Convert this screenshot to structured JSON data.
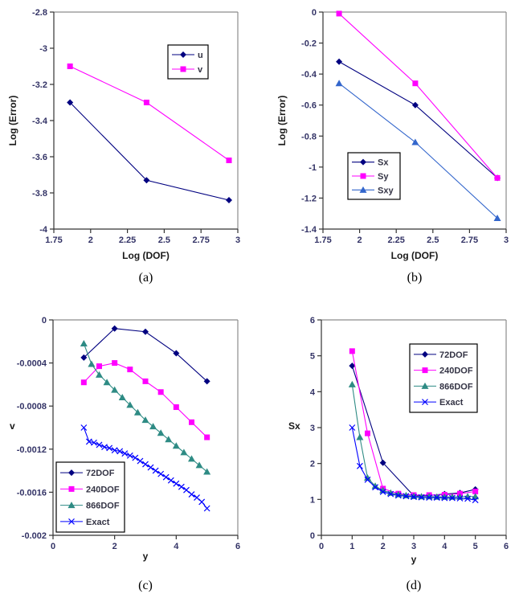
{
  "chart_data": [
    {
      "id": "a",
      "type": "line",
      "caption": "(a)",
      "xlabel": "Log (DOF)",
      "ylabel": "Log (Error)",
      "xlim": [
        1.75,
        3
      ],
      "ylim": [
        -4,
        -2.8
      ],
      "xticks": [
        {
          "v": 1.75,
          "label": "1.75"
        },
        {
          "v": 2,
          "label": "2"
        },
        {
          "v": 2.25,
          "label": "2.25"
        },
        {
          "v": 2.5,
          "label": "2.5"
        },
        {
          "v": 2.75,
          "label": "2.75"
        },
        {
          "v": 3,
          "label": "3"
        }
      ],
      "yticks": [
        {
          "v": -2.8,
          "label": "-2.8"
        },
        {
          "v": -3,
          "label": "-3"
        },
        {
          "v": -3.2,
          "label": "-3.2"
        },
        {
          "v": -3.4,
          "label": "-3.4"
        },
        {
          "v": -3.6,
          "label": "-3.6"
        },
        {
          "v": -3.8,
          "label": "-3.8"
        },
        {
          "v": -4,
          "label": "-4"
        }
      ],
      "grid": "off",
      "legend_position": "top-right",
      "series": [
        {
          "name": "u",
          "color": "#000080",
          "marker": "diamond",
          "x": [
            1.86,
            2.38,
            2.94
          ],
          "y": [
            -3.3,
            -3.73,
            -3.84
          ]
        },
        {
          "name": "v",
          "color": "#FF00FF",
          "marker": "square",
          "x": [
            1.86,
            2.38,
            2.94
          ],
          "y": [
            -3.1,
            -3.3,
            -3.62
          ]
        }
      ]
    },
    {
      "id": "b",
      "type": "line",
      "caption": "(b)",
      "xlabel": "Log (DOF)",
      "ylabel": "Log (Error)",
      "xlim": [
        1.75,
        3
      ],
      "ylim": [
        -1.4,
        0
      ],
      "xticks": [
        {
          "v": 1.75,
          "label": "1.75"
        },
        {
          "v": 2,
          "label": "2"
        },
        {
          "v": 2.25,
          "label": "2.25"
        },
        {
          "v": 2.5,
          "label": "2.5"
        },
        {
          "v": 2.75,
          "label": "2.75"
        },
        {
          "v": 3,
          "label": "3"
        }
      ],
      "yticks": [
        {
          "v": 0,
          "label": "0"
        },
        {
          "v": -0.2,
          "label": "-0.2"
        },
        {
          "v": -0.4,
          "label": "-0.4"
        },
        {
          "v": -0.6,
          "label": "-0.6"
        },
        {
          "v": -0.8,
          "label": "-0.8"
        },
        {
          "v": -1,
          "label": "-1"
        },
        {
          "v": -1.2,
          "label": "-1.2"
        },
        {
          "v": -1.4,
          "label": "-1.4"
        }
      ],
      "grid": "off",
      "legend_position": "mid-left",
      "series": [
        {
          "name": "Sx",
          "color": "#000080",
          "marker": "diamond",
          "x": [
            1.86,
            2.38,
            2.94
          ],
          "y": [
            -0.32,
            -0.6,
            -1.07
          ]
        },
        {
          "name": "Sy",
          "color": "#FF00FF",
          "marker": "square",
          "x": [
            1.86,
            2.38,
            2.94
          ],
          "y": [
            -0.01,
            -0.46,
            -1.07
          ]
        },
        {
          "name": "Sxy",
          "color": "#3366CC",
          "marker": "triangle",
          "x": [
            1.86,
            2.38,
            2.94
          ],
          "y": [
            -0.46,
            -0.84,
            -1.33
          ]
        }
      ]
    },
    {
      "id": "c",
      "type": "line",
      "caption": "(c)",
      "xlabel": "y",
      "ylabel": "v",
      "xlim": [
        0,
        6
      ],
      "ylim": [
        -0.002,
        0
      ],
      "xticks": [
        {
          "v": 0,
          "label": "0"
        },
        {
          "v": 2,
          "label": "2"
        },
        {
          "v": 4,
          "label": "4"
        },
        {
          "v": 6,
          "label": "6"
        }
      ],
      "yticks": [
        {
          "v": 0,
          "label": "0"
        },
        {
          "v": -0.0004,
          "label": "-0.0004"
        },
        {
          "v": -0.0008,
          "label": "-0.0008"
        },
        {
          "v": -0.0012,
          "label": "-0.0012"
        },
        {
          "v": -0.0016,
          "label": "-0.0016"
        },
        {
          "v": -0.002,
          "label": "-0.002"
        }
      ],
      "grid": "off",
      "legend_position": "bottom-left",
      "series": [
        {
          "name": "72DOF",
          "color": "#000080",
          "marker": "diamond",
          "x": [
            1,
            2,
            3,
            4,
            5
          ],
          "y": [
            -0.00035,
            -8e-05,
            -0.00011,
            -0.00031,
            -0.00057
          ]
        },
        {
          "name": "240DOF",
          "color": "#FF00FF",
          "marker": "square",
          "x": [
            1,
            1.5,
            2,
            2.5,
            3,
            3.5,
            4,
            4.5,
            5
          ],
          "y": [
            -0.00058,
            -0.00043,
            -0.0004,
            -0.00046,
            -0.00057,
            -0.00067,
            -0.00081,
            -0.00095,
            -0.00109
          ]
        },
        {
          "name": "866DOF",
          "color": "#2E8B84",
          "marker": "triangle",
          "x": [
            1,
            1.25,
            1.5,
            1.75,
            2,
            2.25,
            2.5,
            2.75,
            3,
            3.25,
            3.5,
            3.75,
            4,
            4.25,
            4.5,
            4.75,
            5
          ],
          "y": [
            -0.00022,
            -0.00041,
            -0.00051,
            -0.00058,
            -0.00065,
            -0.00072,
            -0.00079,
            -0.00086,
            -0.00093,
            -0.00099,
            -0.00105,
            -0.00111,
            -0.00117,
            -0.00123,
            -0.00129,
            -0.00135,
            -0.00141
          ]
        },
        {
          "name": "Exact",
          "color": "#0000FF",
          "marker": "x",
          "x": [
            1,
            1.17,
            1.33,
            1.5,
            1.67,
            1.83,
            2,
            2.17,
            2.33,
            2.5,
            2.67,
            2.83,
            3,
            3.17,
            3.33,
            3.5,
            3.67,
            3.83,
            4,
            4.17,
            4.33,
            4.5,
            4.67,
            4.83,
            5
          ],
          "y": [
            -0.001,
            -0.00113,
            -0.00114,
            -0.00116,
            -0.00118,
            -0.00119,
            -0.00121,
            -0.00122,
            -0.00124,
            -0.00126,
            -0.00128,
            -0.00131,
            -0.00134,
            -0.00137,
            -0.0014,
            -0.00143,
            -0.00146,
            -0.00149,
            -0.00152,
            -0.00155,
            -0.00158,
            -0.00162,
            -0.00165,
            -0.00169,
            -0.00175
          ]
        }
      ]
    },
    {
      "id": "d",
      "type": "line",
      "caption": "(d)",
      "xlabel": "y",
      "ylabel": "Sx",
      "xlim": [
        0,
        6
      ],
      "ylim": [
        0,
        6
      ],
      "xticks": [
        {
          "v": 0,
          "label": "0"
        },
        {
          "v": 1,
          "label": "1"
        },
        {
          "v": 2,
          "label": "2"
        },
        {
          "v": 3,
          "label": "3"
        },
        {
          "v": 4,
          "label": "4"
        },
        {
          "v": 5,
          "label": "5"
        },
        {
          "v": 6,
          "label": "6"
        }
      ],
      "yticks": [
        {
          "v": 0,
          "label": "0"
        },
        {
          "v": 1,
          "label": "1"
        },
        {
          "v": 2,
          "label": "2"
        },
        {
          "v": 3,
          "label": "3"
        },
        {
          "v": 4,
          "label": "4"
        },
        {
          "v": 5,
          "label": "5"
        },
        {
          "v": 6,
          "label": "6"
        }
      ],
      "grid": "off",
      "legend_position": "top-right",
      "series": [
        {
          "name": "72DOF",
          "color": "#000080",
          "marker": "diamond",
          "x": [
            1,
            2,
            3,
            3.5,
            4,
            4.5,
            5
          ],
          "y": [
            4.72,
            2.02,
            1.1,
            1.11,
            1.15,
            1.18,
            1.28
          ]
        },
        {
          "name": "240DOF",
          "color": "#FF00FF",
          "marker": "square",
          "x": [
            1,
            1.5,
            2,
            2.5,
            3,
            3.5,
            4,
            4.5,
            5
          ],
          "y": [
            5.13,
            2.84,
            1.3,
            1.16,
            1.12,
            1.12,
            1.13,
            1.16,
            1.22
          ]
        },
        {
          "name": "866DOF",
          "color": "#2E8B84",
          "marker": "triangle",
          "x": [
            1,
            1.25,
            1.5,
            1.75,
            2,
            2.25,
            2.5,
            2.75,
            3,
            3.25,
            3.5,
            3.75,
            4,
            4.25,
            4.5,
            4.75,
            5
          ],
          "y": [
            4.2,
            2.73,
            1.6,
            1.37,
            1.25,
            1.18,
            1.14,
            1.11,
            1.09,
            1.08,
            1.08,
            1.07,
            1.07,
            1.07,
            1.07,
            1.08,
            1.08
          ]
        },
        {
          "name": "Exact",
          "color": "#0000FF",
          "marker": "x",
          "x": [
            1,
            1.25,
            1.5,
            1.75,
            2,
            2.25,
            2.5,
            2.75,
            3,
            3.25,
            3.5,
            3.75,
            4,
            4.25,
            4.5,
            4.75,
            5
          ],
          "y": [
            3,
            1.93,
            1.55,
            1.34,
            1.21,
            1.15,
            1.11,
            1.09,
            1.07,
            1.06,
            1.05,
            1.05,
            1.04,
            1.04,
            1.03,
            1.02,
            0.98
          ]
        }
      ]
    }
  ]
}
